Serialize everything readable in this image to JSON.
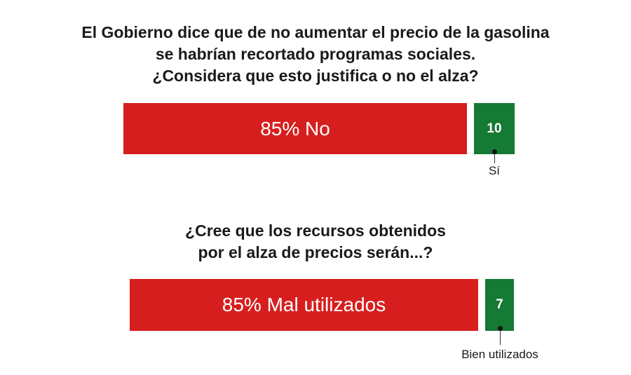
{
  "colors": {
    "no": "#d71e1e",
    "yes": "#157a33"
  },
  "chart_data": [
    {
      "type": "bar",
      "title_lines": [
        "El Gobierno dice que de no aumentar el precio de la gasolina",
        "se habrían recortado programas sociales.",
        "¿Considera que esto justifica o no el alza?"
      ],
      "series": [
        {
          "name": "No",
          "value": 85,
          "label": "85% No",
          "color": "#d71e1e"
        },
        {
          "name": "Sí",
          "value": 10,
          "label": "10",
          "color": "#157a33",
          "callout": "Sí"
        }
      ]
    },
    {
      "type": "bar",
      "title_lines": [
        "¿Cree que los recursos obtenidos",
        "por el alza de precios serán...?"
      ],
      "series": [
        {
          "name": "Mal utilizados",
          "value": 85,
          "label": "85% Mal utilizados",
          "color": "#d71e1e"
        },
        {
          "name": "Bien utilizados",
          "value": 7,
          "label": "7",
          "color": "#157a33",
          "callout": "Bien utilizados"
        }
      ]
    }
  ]
}
